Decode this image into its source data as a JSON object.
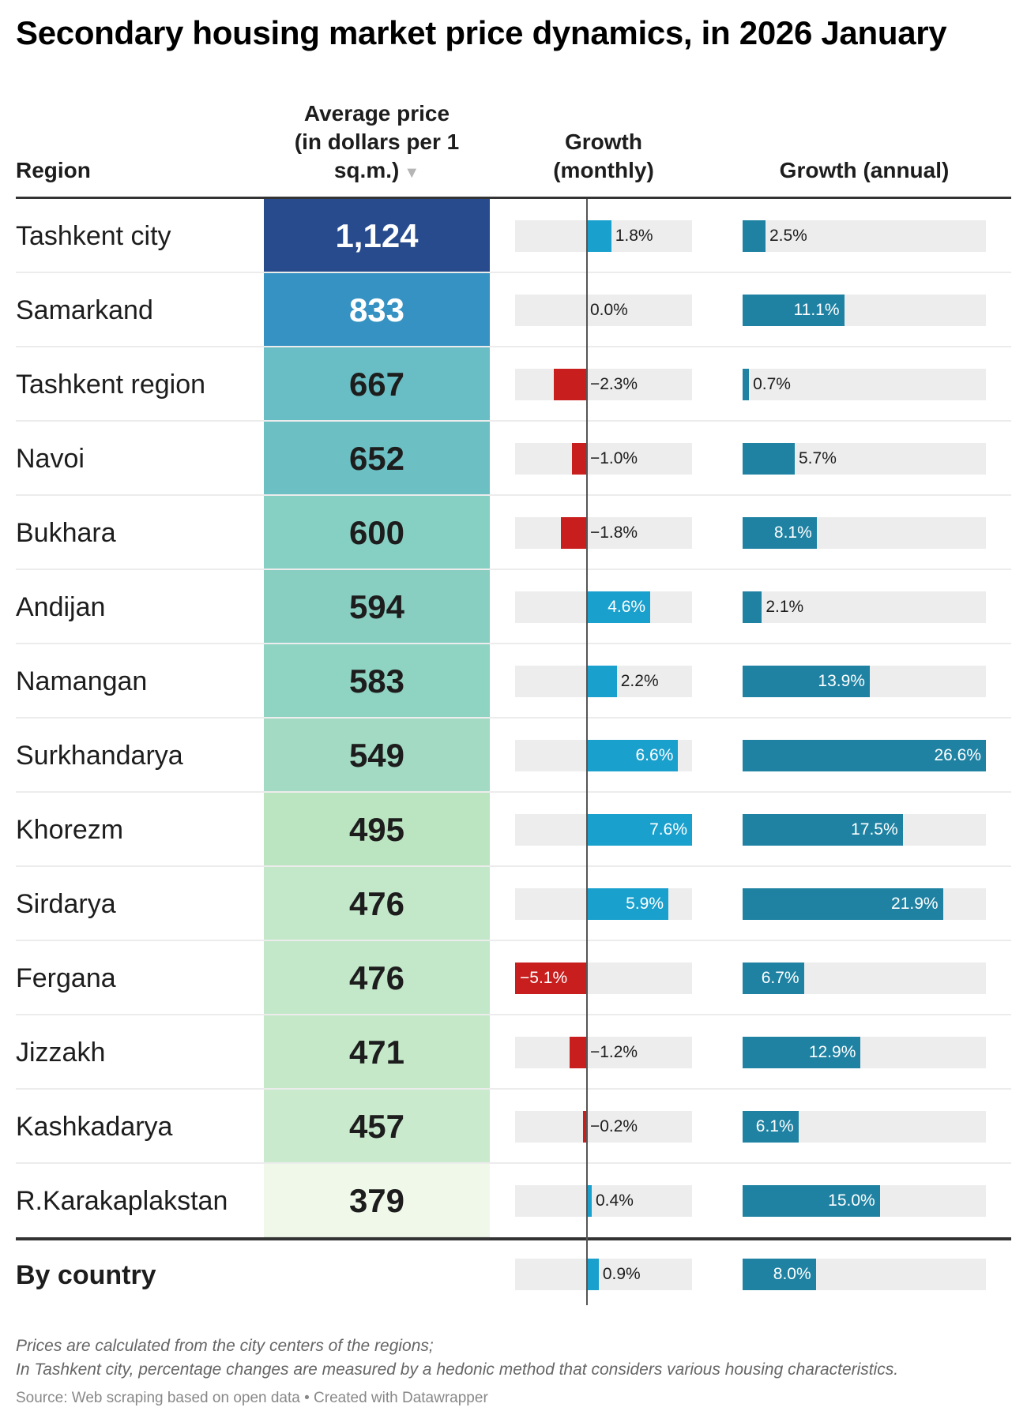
{
  "title": "Secondary housing market price dynamics, in 2026 January",
  "headers": {
    "region": "Region",
    "price_line1": "Average price",
    "price_line2": "(in dollars per 1",
    "price_line3": "sq.m.)",
    "sort_indicator": "▼",
    "monthly_line1": "Growth",
    "monthly_line2": "(monthly)",
    "annual": "Growth (annual)"
  },
  "colors": {
    "monthly_positive": "#1aa0cd",
    "monthly_negative": "#c81e1e",
    "annual": "#1f82a3",
    "bar_background": "#ededed"
  },
  "chart_data": {
    "type": "table",
    "columns": [
      "Region",
      "Average price (in dollars per 1 sq.m.)",
      "Growth (monthly)",
      "Growth (annual)"
    ],
    "monthly_range": [
      -5.1,
      7.6
    ],
    "annual_range": [
      0,
      26.6
    ],
    "rows": [
      {
        "region": "Tashkent city",
        "price": "1,124",
        "price_value": 1124,
        "price_color": "#274b8c",
        "price_text_color": "#ffffff",
        "monthly": 1.8,
        "monthly_label": "1.8%",
        "annual": 2.5,
        "annual_label": "2.5%"
      },
      {
        "region": "Samarkand",
        "price": "833",
        "price_value": 833,
        "price_color": "#3692c2",
        "price_text_color": "#ffffff",
        "monthly": 0.0,
        "monthly_label": "0.0%",
        "annual": 11.1,
        "annual_label": "11.1%"
      },
      {
        "region": "Tashkent region",
        "price": "667",
        "price_value": 667,
        "price_color": "#69bdc4",
        "price_text_color": "#1d1d1d",
        "monthly": -2.3,
        "monthly_label": "−2.3%",
        "annual": 0.7,
        "annual_label": "0.7%"
      },
      {
        "region": "Navoi",
        "price": "652",
        "price_value": 652,
        "price_color": "#6cc0c4",
        "price_text_color": "#1d1d1d",
        "monthly": -1.0,
        "monthly_label": "−1.0%",
        "annual": 5.7,
        "annual_label": "5.7%"
      },
      {
        "region": "Bukhara",
        "price": "600",
        "price_value": 600,
        "price_color": "#86d0c3",
        "price_text_color": "#1d1d1d",
        "monthly": -1.8,
        "monthly_label": "−1.8%",
        "annual": 8.1,
        "annual_label": "8.1%"
      },
      {
        "region": "Andijan",
        "price": "594",
        "price_value": 594,
        "price_color": "#88cfc2",
        "price_text_color": "#1d1d1d",
        "monthly": 4.6,
        "monthly_label": "4.6%",
        "annual": 2.1,
        "annual_label": "2.1%"
      },
      {
        "region": "Namangan",
        "price": "583",
        "price_value": 583,
        "price_color": "#8fd3c2",
        "price_text_color": "#1d1d1d",
        "monthly": 2.2,
        "monthly_label": "2.2%",
        "annual": 13.9,
        "annual_label": "13.9%"
      },
      {
        "region": "Surkhandarya",
        "price": "549",
        "price_value": 549,
        "price_color": "#a2dac3",
        "price_text_color": "#1d1d1d",
        "monthly": 6.6,
        "monthly_label": "6.6%",
        "annual": 26.6,
        "annual_label": "26.6%"
      },
      {
        "region": "Khorezm",
        "price": "495",
        "price_value": 495,
        "price_color": "#bbe4c0",
        "price_text_color": "#1d1d1d",
        "monthly": 7.6,
        "monthly_label": "7.6%",
        "annual": 17.5,
        "annual_label": "17.5%"
      },
      {
        "region": "Sirdarya",
        "price": "476",
        "price_value": 476,
        "price_color": "#c3e8c9",
        "price_text_color": "#1d1d1d",
        "monthly": 5.9,
        "monthly_label": "5.9%",
        "annual": 21.9,
        "annual_label": "21.9%"
      },
      {
        "region": "Fergana",
        "price": "476",
        "price_value": 476,
        "price_color": "#c3e8c9",
        "price_text_color": "#1d1d1d",
        "monthly": -5.1,
        "monthly_label": "−5.1%",
        "annual": 6.7,
        "annual_label": "6.7%"
      },
      {
        "region": "Jizzakh",
        "price": "471",
        "price_value": 471,
        "price_color": "#c4e8c8",
        "price_text_color": "#1d1d1d",
        "monthly": -1.2,
        "monthly_label": "−1.2%",
        "annual": 12.9,
        "annual_label": "12.9%"
      },
      {
        "region": "Kashkadarya",
        "price": "457",
        "price_value": 457,
        "price_color": "#c9eacd",
        "price_text_color": "#1d1d1d",
        "monthly": -0.2,
        "monthly_label": "−0.2%",
        "annual": 6.1,
        "annual_label": "6.1%"
      },
      {
        "region": "R.Karakaplakstan",
        "price": "379",
        "price_value": 379,
        "price_color": "#eff8e9",
        "price_text_color": "#1d1d1d",
        "monthly": 0.4,
        "monthly_label": "0.4%",
        "annual": 15.0,
        "annual_label": "15.0%"
      }
    ],
    "total": {
      "region": "By country",
      "monthly": 0.9,
      "monthly_label": "0.9%",
      "annual": 8.0,
      "annual_label": "8.0%"
    }
  },
  "notes": {
    "line1": "Prices are calculated from the city centers of the regions;",
    "line2": "In Tashkent city, percentage changes are measured by a hedonic method that considers various housing characteristics."
  },
  "source": "Source: Web scraping based on open data • Created with Datawrapper"
}
